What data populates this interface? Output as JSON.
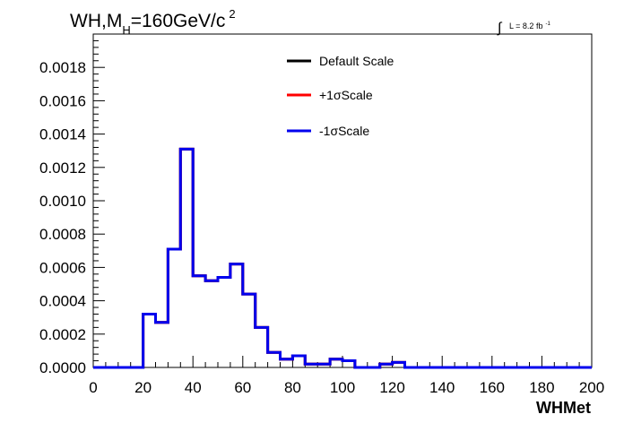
{
  "chart_data": {
    "type": "histogram",
    "title": {
      "prefix": "WH,M",
      "subscript": "H",
      "middle": "=160GeV/c",
      "superscript": "2"
    },
    "luminosity": {
      "integral_symbol": "∫",
      "text": "L = 8.2 fb",
      "superscript": "-1"
    },
    "xlabel": "WHMet",
    "ylabel": "",
    "xlim": [
      0,
      200
    ],
    "ylim": [
      0,
      0.002
    ],
    "x_ticks": [
      "0",
      "20",
      "40",
      "60",
      "80",
      "100",
      "120",
      "140",
      "160",
      "180",
      "200"
    ],
    "x_tick_values": [
      0,
      20,
      40,
      60,
      80,
      100,
      120,
      140,
      160,
      180,
      200
    ],
    "y_ticks": [
      "0.0000",
      "0.0002",
      "0.0004",
      "0.0006",
      "0.0008",
      "0.0010",
      "0.0012",
      "0.0014",
      "0.0016",
      "0.0018"
    ],
    "y_tick_values": [
      0,
      0.0002,
      0.0004,
      0.0006,
      0.0008,
      0.001,
      0.0012,
      0.0014,
      0.0016,
      0.0018
    ],
    "bin_width": 5,
    "bin_edges_start": 0,
    "grid": false,
    "legend_position": "top-center",
    "series": [
      {
        "name": "Default Scale",
        "color": "#000000",
        "values": [
          0,
          0,
          0,
          0,
          0.00032,
          0.00027,
          0.00071,
          0.00131,
          0.00055,
          0.00052,
          0.00054,
          0.00062,
          0.00044,
          0.00024,
          9e-05,
          5e-05,
          7e-05,
          2e-05,
          2e-05,
          5e-05,
          4e-05,
          0,
          0,
          2e-05,
          3e-05,
          0,
          0,
          0,
          0,
          0,
          0,
          0,
          0,
          0,
          0,
          0,
          0,
          0,
          0,
          0
        ]
      },
      {
        "name": "+1σScale",
        "color": "#ff0000",
        "values": [
          0,
          0,
          0,
          0,
          0.00032,
          0.00027,
          0.00071,
          0.00131,
          0.00055,
          0.00052,
          0.00054,
          0.00062,
          0.00044,
          0.00024,
          9e-05,
          5e-05,
          7e-05,
          2e-05,
          2e-05,
          5e-05,
          4e-05,
          0,
          0,
          2e-05,
          3e-05,
          0,
          0,
          0,
          0,
          0,
          0,
          0,
          0,
          0,
          0,
          0,
          0,
          0,
          0,
          0
        ]
      },
      {
        "name": "-1σScale",
        "color": "#0000ee",
        "values": [
          0,
          0,
          0,
          0,
          0.00032,
          0.00027,
          0.00071,
          0.00131,
          0.00055,
          0.00052,
          0.00054,
          0.00062,
          0.00044,
          0.00024,
          9e-05,
          5e-05,
          7e-05,
          2e-05,
          2e-05,
          5e-05,
          4e-05,
          0,
          0,
          2e-05,
          3e-05,
          0,
          0,
          0,
          0,
          0,
          0,
          0,
          0,
          0,
          0,
          0,
          0,
          0,
          0,
          0
        ]
      }
    ]
  }
}
